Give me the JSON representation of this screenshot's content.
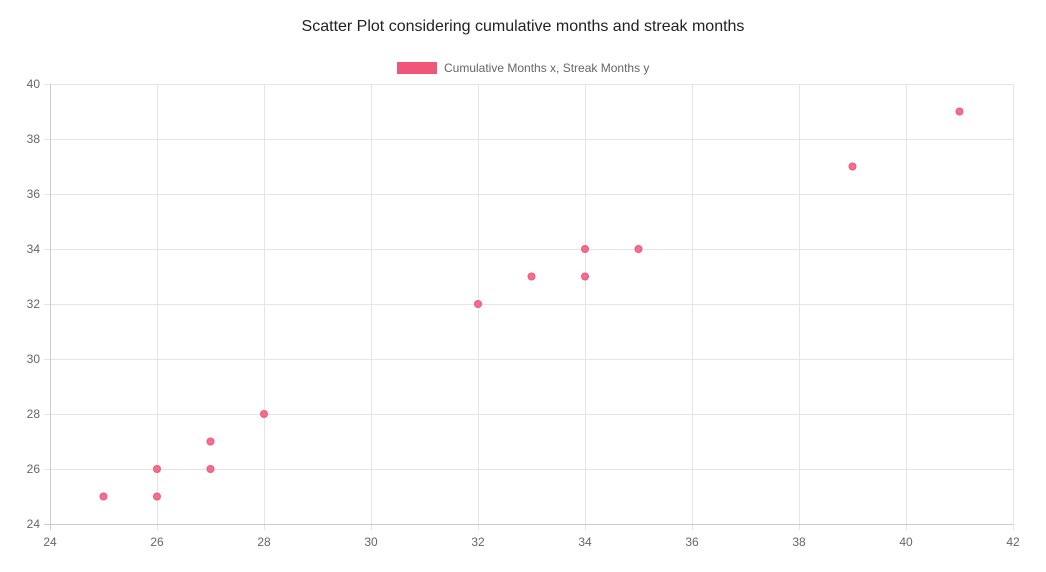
{
  "chart_data": {
    "type": "scatter",
    "title": "Scatter Plot considering cumulative months and streak months",
    "xlabel": "",
    "ylabel": "",
    "xlim": [
      24,
      42
    ],
    "ylim": [
      24,
      40
    ],
    "x_ticks": [
      "24",
      "26",
      "28",
      "30",
      "32",
      "34",
      "36",
      "38",
      "40",
      "42"
    ],
    "y_ticks": [
      "24",
      "26",
      "28",
      "30",
      "32",
      "34",
      "36",
      "38",
      "40"
    ],
    "grid": true,
    "legend_position": "top-center",
    "series": [
      {
        "name": "Cumulative Months x, Streak Months y",
        "color": "#f0567a",
        "points": [
          {
            "x": 25,
            "y": 25
          },
          {
            "x": 26,
            "y": 25
          },
          {
            "x": 26,
            "y": 26
          },
          {
            "x": 27,
            "y": 26
          },
          {
            "x": 27,
            "y": 27
          },
          {
            "x": 28,
            "y": 28
          },
          {
            "x": 32,
            "y": 32
          },
          {
            "x": 33,
            "y": 33
          },
          {
            "x": 34,
            "y": 33
          },
          {
            "x": 34,
            "y": 34
          },
          {
            "x": 35,
            "y": 34
          },
          {
            "x": 39,
            "y": 37
          },
          {
            "x": 41,
            "y": 39
          }
        ]
      }
    ]
  }
}
